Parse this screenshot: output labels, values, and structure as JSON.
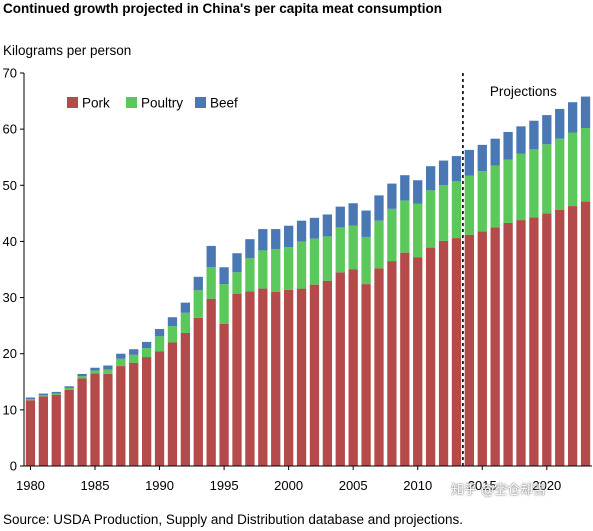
{
  "chart_data": {
    "type": "bar",
    "stacked": true,
    "title": "Continued growth projected in China's per capita meat consumption",
    "ylabel": "Kilograms per person",
    "xlabel": "",
    "ylim": [
      0,
      70
    ],
    "yticks": [
      0,
      10,
      20,
      30,
      40,
      50,
      60,
      70
    ],
    "xticks": [
      1980,
      1985,
      1990,
      1995,
      2000,
      2005,
      2010,
      2015,
      2020
    ],
    "x": [
      1980,
      1981,
      1982,
      1983,
      1984,
      1985,
      1986,
      1987,
      1988,
      1989,
      1990,
      1991,
      1992,
      1993,
      1994,
      1995,
      1996,
      1997,
      1998,
      1999,
      2000,
      2001,
      2002,
      2003,
      2004,
      2005,
      2006,
      2007,
      2008,
      2009,
      2010,
      2011,
      2012,
      2013,
      2014,
      2015,
      2016,
      2017,
      2018,
      2019,
      2020,
      2021,
      2022,
      2023
    ],
    "series": [
      {
        "name": "Pork",
        "color": "#b54a4a",
        "values": [
          11.7,
          12.4,
          12.7,
          13.6,
          15.6,
          16.5,
          16.4,
          17.8,
          18.4,
          19.4,
          20.4,
          22.0,
          23.7,
          26.4,
          29.8,
          25.3,
          30.7,
          31.1,
          31.6,
          31.0,
          31.4,
          31.6,
          32.3,
          33.0,
          34.5,
          35.0,
          32.4,
          35.2,
          36.5,
          38.0,
          37.2,
          38.9,
          40.1,
          40.6,
          41.2,
          41.8,
          42.5,
          43.3,
          43.8,
          44.3,
          45.0,
          45.6,
          46.3,
          47.1
        ]
      },
      {
        "name": "Poultry",
        "color": "#5ac85a",
        "values": [
          0.2,
          0.2,
          0.2,
          0.3,
          0.4,
          0.5,
          0.8,
          1.3,
          1.4,
          1.6,
          2.7,
          2.9,
          3.6,
          4.9,
          5.6,
          7.1,
          3.8,
          5.9,
          6.8,
          7.6,
          7.6,
          8.4,
          8.2,
          7.9,
          8.0,
          7.8,
          8.4,
          8.5,
          9.3,
          9.3,
          9.5,
          10.2,
          9.9,
          10.1,
          10.5,
          10.7,
          11.0,
          11.3,
          11.8,
          12.1,
          12.3,
          12.7,
          13.1,
          13.1
        ]
      },
      {
        "name": "Beef",
        "color": "#4a78b4",
        "values": [
          0.3,
          0.3,
          0.3,
          0.3,
          0.4,
          0.5,
          0.7,
          0.9,
          1.0,
          1.1,
          1.3,
          1.6,
          1.8,
          2.4,
          3.8,
          3.0,
          3.4,
          3.4,
          3.8,
          3.6,
          3.8,
          3.7,
          3.7,
          3.9,
          3.7,
          4.0,
          4.7,
          4.5,
          4.5,
          4.5,
          4.2,
          4.3,
          4.4,
          4.5,
          4.6,
          4.7,
          4.8,
          4.9,
          4.9,
          5.1,
          5.2,
          5.3,
          5.4,
          5.6
        ]
      }
    ],
    "divider_after_year": 2013,
    "annotation": "Projections",
    "legend_position": "top-left",
    "grid": false
  },
  "source": "Source: USDA Production, Supply and Distribution database and projections.",
  "watermark": "知乎 @空仓却吉"
}
